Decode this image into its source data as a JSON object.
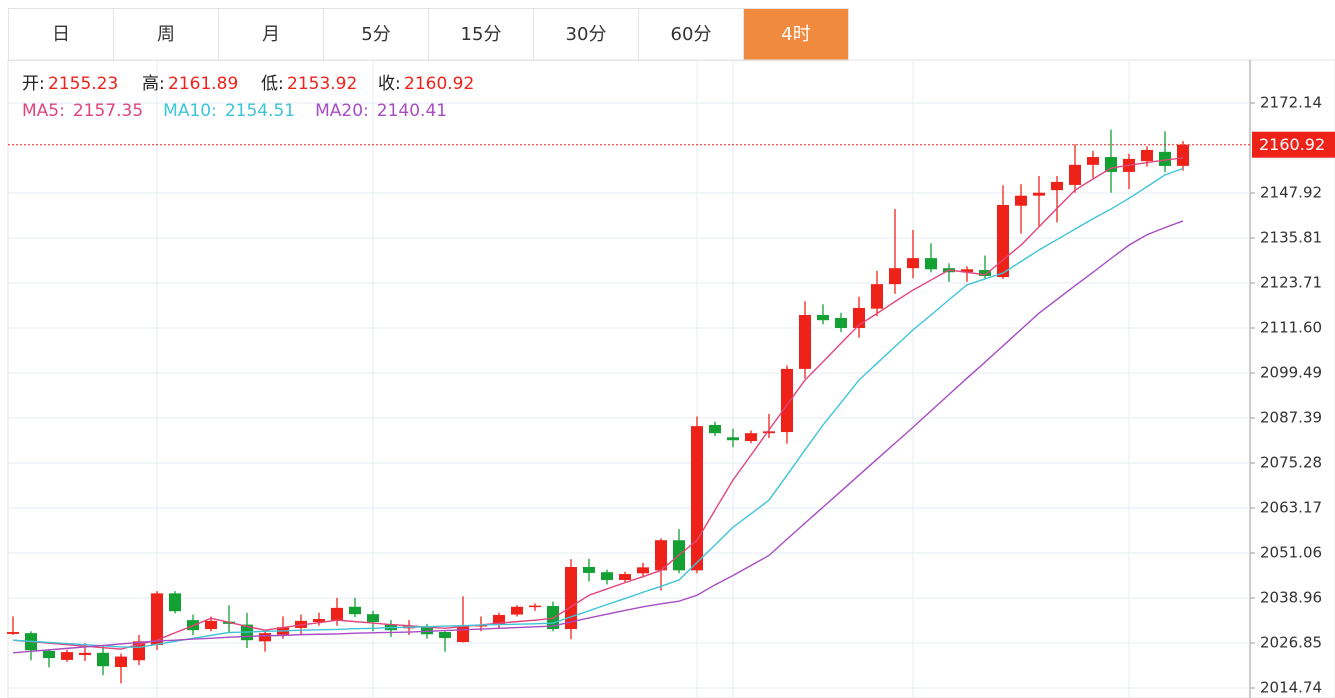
{
  "tabs": [
    {
      "label": "日",
      "active": false
    },
    {
      "label": "周",
      "active": false
    },
    {
      "label": "月",
      "active": false
    },
    {
      "label": "5分",
      "active": false
    },
    {
      "label": "15分",
      "active": false
    },
    {
      "label": "30分",
      "active": false
    },
    {
      "label": "60分",
      "active": false
    },
    {
      "label": "4时",
      "active": true
    }
  ],
  "chart_data": {
    "type": "candlestick",
    "ohlc_labels": [
      "开:",
      "高:",
      "低:",
      "收:"
    ],
    "open": [
      2029.3,
      2029.5,
      2024.7,
      2022.3,
      2023.6,
      2024.2,
      2020.4,
      2022.2,
      2026.3,
      2040.2,
      2033,
      2030.6,
      2032.6,
      2031.8,
      2027.3,
      2029.1,
      2030.9,
      2032.5,
      2033.0,
      2036.6,
      2034.6,
      2031.9,
      2030.8,
      2031.1,
      2029.8,
      2027.1,
      2031.3,
      2031.7,
      2034.5,
      2036.5,
      2036.8,
      2030.6,
      2047.3,
      2045.9,
      2043.8,
      2045.6,
      2046.4,
      2054.5,
      2046.4,
      2085.5,
      2082.2,
      2081.2,
      2083.3,
      2083.6,
      2100.6,
      2115.1,
      2114.3,
      2111.6,
      2116.8,
      2123.4,
      2127.7,
      2130.4,
      2127.7,
      2126.6,
      2127.2,
      2125.3,
      2144.5,
      2147.2,
      2148.7,
      2150.1,
      2155.5,
      2157.6,
      2153.6,
      2156.5,
      2159.0,
      2155.23
    ],
    "high": [
      2034,
      2030,
      2025.2,
      2025,
      2026.8,
      2026,
      2024,
      2029,
      2040.8,
      2040.8,
      2034.5,
      2034,
      2037,
      2035,
      2030.4,
      2034,
      2034.5,
      2035,
      2039,
      2039,
      2035.5,
      2033,
      2033,
      2032,
      2030,
      2039.4,
      2034,
      2035,
      2037,
      2037.5,
      2038,
      2049.4,
      2049.5,
      2046.6,
      2046,
      2048.4,
      2055,
      2057.5,
      2087.8,
      2086.4,
      2084.5,
      2084,
      2088.5,
      2101.5,
      2118.8,
      2118,
      2115.7,
      2120,
      2127,
      2143.6,
      2138,
      2134.4,
      2129,
      2128.2,
      2131.1,
      2150,
      2150.3,
      2152.5,
      2152.5,
      2161,
      2159.3,
      2165,
      2158.5,
      2160.5,
      2164.5,
      2161.89
    ],
    "low": [
      2029,
      2022.2,
      2020.3,
      2021.8,
      2022,
      2018.2,
      2016,
      2020.9,
      2025,
      2034.8,
      2029,
      2030,
      2029.5,
      2025.5,
      2024.5,
      2028,
      2029,
      2031.5,
      2031.5,
      2033.8,
      2030,
      2028.5,
      2029,
      2028,
      2024.5,
      2027,
      2030,
      2030.6,
      2034,
      2035.5,
      2030,
      2027.9,
      2043.4,
      2042.6,
      2043,
      2044.5,
      2041,
      2045.6,
      2045.6,
      2082.5,
      2079.5,
      2080.6,
      2082,
      2080.5,
      2098,
      2112.6,
      2110.5,
      2109,
      2114.8,
      2120.8,
      2125,
      2126.6,
      2124,
      2124,
      2125,
      2124.8,
      2137,
      2139,
      2140,
      2148,
      2152,
      2148,
      2149,
      2155,
      2153.5,
      2153.92
    ],
    "close": [
      2029.8,
      2024.9,
      2022.8,
      2024.4,
      2024.2,
      2020.6,
      2023.2,
      2027.3,
      2040.2,
      2035.4,
      2030.3,
      2032.8,
      2032.0,
      2027.6,
      2029.5,
      2031.1,
      2032.8,
      2033.3,
      2036.3,
      2034.6,
      2032.5,
      2030.3,
      2031.4,
      2029.2,
      2028.2,
      2031.4,
      2031.8,
      2034.4,
      2036.6,
      2036.9,
      2030.6,
      2047.3,
      2045.7,
      2043.8,
      2045.4,
      2047.2,
      2054.5,
      2046.4,
      2085.2,
      2083.3,
      2081.4,
      2083.3,
      2083.8,
      2100.6,
      2115.1,
      2113.7,
      2111.6,
      2117.0,
      2123.4,
      2127.7,
      2130.4,
      2127.4,
      2126.6,
      2127.4,
      2125.6,
      2144.7,
      2147.2,
      2148.0,
      2150.9,
      2155.5,
      2157.6,
      2153.6,
      2157.1,
      2159.5,
      2155.2,
      2160.92
    ],
    "up_color": "#ee2219",
    "down_color": "#12a132",
    "series": [
      {
        "name": "MA5:",
        "color": "#e2457c",
        "values": [
          2027.6,
          2027.2,
          2026.8,
          2026.4,
          2026.0,
          2025.6,
          2025.2,
          2026.5,
          2027.6,
          2029.6,
          2031.5,
          2033.5,
          2032.4,
          2031.3,
          2030.3,
          2031.0,
          2031.7,
          2032.3,
          2033.0,
          2032.6,
          2032.2,
          2031.8,
          2031.5,
          2031.1,
          2030.8,
          2031.3,
          2031.7,
          2032.2,
          2032.6,
          2033.0,
          2033.5,
          2036.6,
          2039.7,
          2041.4,
          2043.1,
          2044.7,
          2046.4,
          2050.5,
          2054.5,
          2062.6,
          2070.7,
          2077.4,
          2084.2,
          2090.9,
          2097.6,
          2102.5,
          2107.5,
          2112.4,
          2115.5,
          2118.7,
          2121.8,
          2124.5,
          2127.2,
          2126.6,
          2125.9,
          2129.9,
          2133.9,
          2138.8,
          2143.8,
          2148.7,
          2151.7,
          2154.6,
          2155.4,
          2156.1,
          2156.8,
          2157.35
        ]
      },
      {
        "name": "MA10:",
        "color": "#3ec4d9",
        "values": [
          2027.6,
          2027.3,
          2027.0,
          2026.7,
          2026.4,
          2026.1,
          2025.8,
          2025.7,
          2026.5,
          2027.3,
          2028.1,
          2028.9,
          2029.7,
          2029.8,
          2030.0,
          2030.1,
          2030.3,
          2030.4,
          2030.5,
          2030.7,
          2030.8,
          2031.0,
          2031.1,
          2031.2,
          2031.4,
          2031.5,
          2031.7,
          2031.8,
          2031.9,
          2032.0,
          2032.2,
          2033.9,
          2035.5,
          2037.2,
          2038.8,
          2040.5,
          2042.1,
          2043.8,
          2048.5,
          2053.2,
          2058.0,
          2061.6,
          2065.3,
          2072.0,
          2078.8,
          2085.5,
          2091.5,
          2097.6,
          2102.1,
          2106.6,
          2111.1,
          2115.1,
          2119.2,
          2123.2,
          2124.8,
          2126.4,
          2129.5,
          2132.6,
          2135.4,
          2138.2,
          2141.0,
          2143.6,
          2146.5,
          2149.6,
          2152.8,
          2154.51
        ]
      },
      {
        "name": "MA20:",
        "color": "#a84cc4",
        "values": [
          2024.2,
          2024.6,
          2025.0,
          2025.4,
          2025.8,
          2026.2,
          2026.6,
          2027.0,
          2027.4,
          2027.6,
          2027.9,
          2028.1,
          2028.4,
          2028.6,
          2028.8,
          2028.9,
          2029.1,
          2029.2,
          2029.3,
          2029.5,
          2029.6,
          2029.7,
          2029.8,
          2030.0,
          2030.2,
          2030.4,
          2030.6,
          2030.8,
          2031.0,
          2031.2,
          2031.4,
          2032.5,
          2033.6,
          2034.6,
          2035.6,
          2036.6,
          2037.4,
          2038.1,
          2039.7,
          2042.5,
          2045.0,
          2047.7,
          2050.4,
          2054.8,
          2059.1,
          2063.4,
          2067.7,
          2072.0,
          2076.3,
          2080.6,
          2084.9,
          2089.3,
          2093.7,
          2098.1,
          2102.4,
          2106.8,
          2111.2,
          2115.6,
          2119.3,
          2123.0,
          2126.6,
          2130.3,
          2133.9,
          2136.7,
          2138.6,
          2140.41
        ]
      }
    ],
    "ylim": [
      2012.05,
      2183.71
    ],
    "yticks": [
      2014.74,
      2026.85,
      2038.96,
      2051.06,
      2063.17,
      2075.28,
      2087.39,
      2099.49,
      {
        "value": 2111.6,
        "label": "2111.60"
      },
      2123.71,
      2135.81,
      2147.92,
      2172.14
    ],
    "grid": true,
    "last_price_line": true
  }
}
